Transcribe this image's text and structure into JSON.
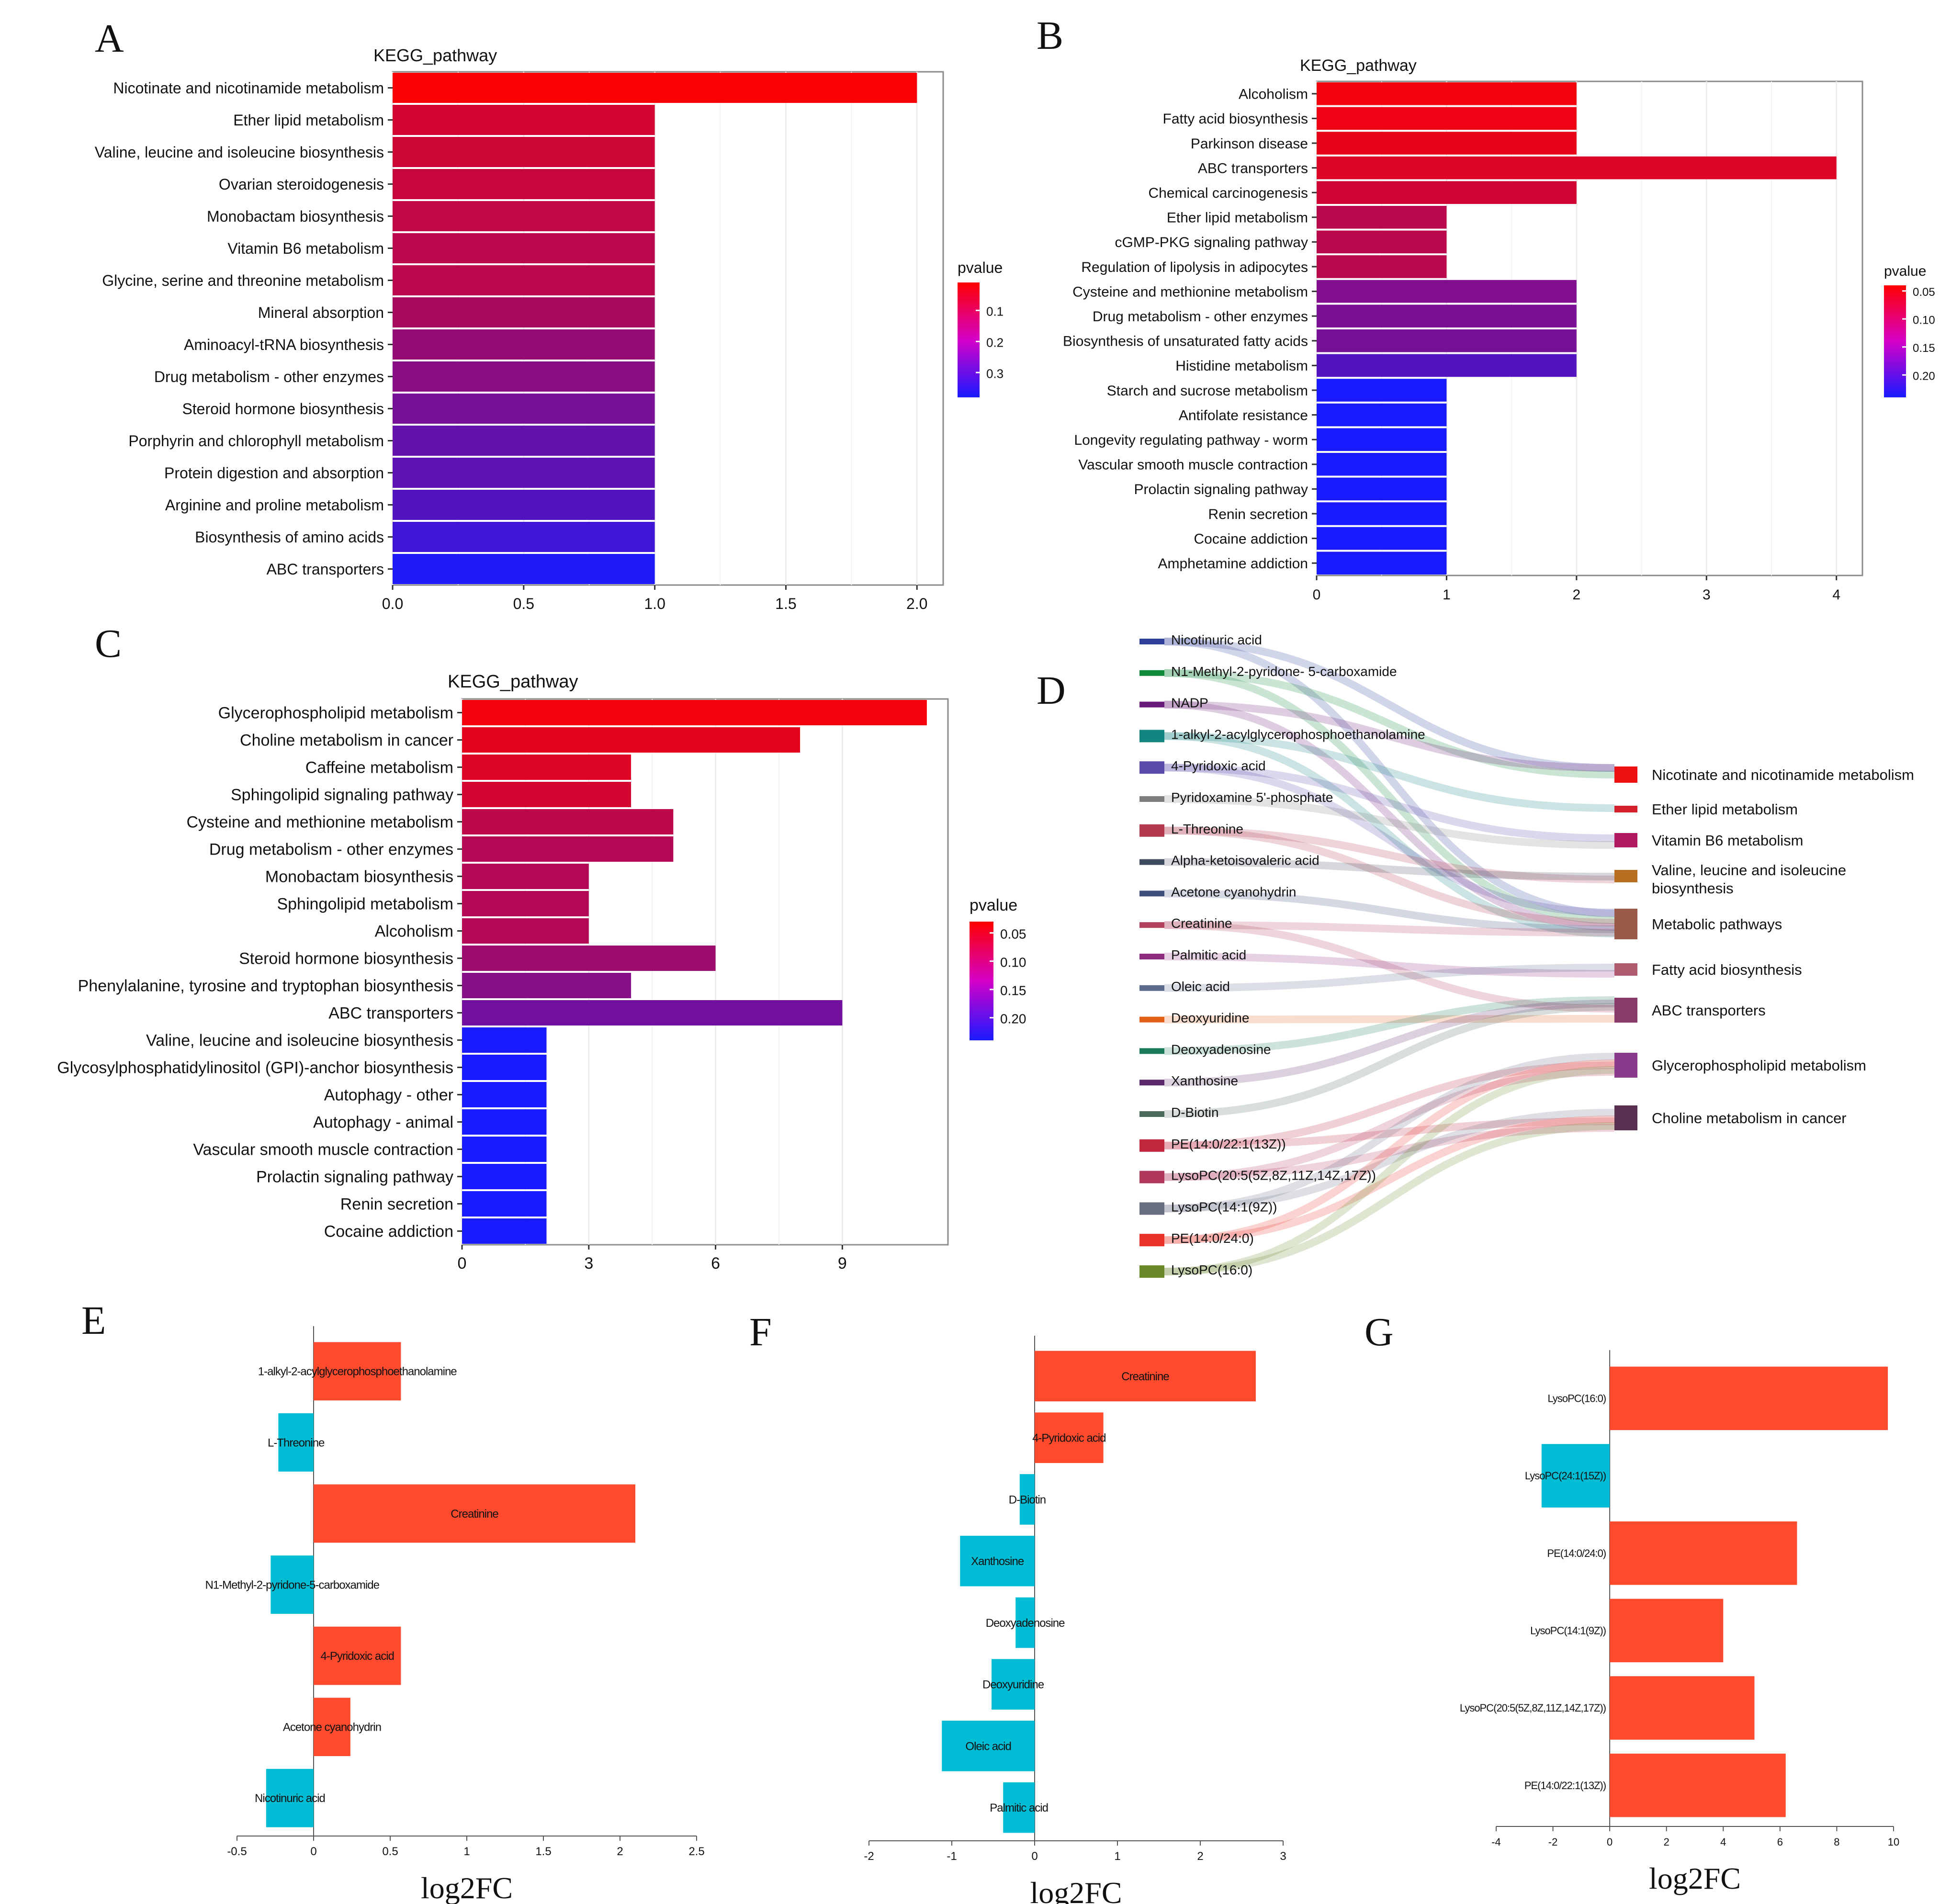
{
  "colors": {
    "red": "#ff0000",
    "blue": "#1a1aff",
    "bar_up": "#ff4a2e",
    "bar_down": "#00bcd4",
    "grid": "#ececec",
    "frame": "#8c8c8c",
    "ink": "#111111"
  },
  "chart_data": [
    {
      "panel": "A",
      "type": "bar",
      "orientation": "horizontal",
      "title": "KEGG_pathway",
      "categories": [
        "Nicotinate and nicotinamide metabolism",
        "Ether lipid metabolism",
        "Valine, leucine and isoleucine biosynthesis",
        "Ovarian steroidogenesis",
        "Monobactam biosynthesis",
        "Vitamin B6 metabolism",
        "Glycine, serine and threonine metabolism",
        "Mineral absorption",
        "Aminoacyl-tRNA biosynthesis",
        "Drug metabolism - other enzymes",
        "Steroid hormone biosynthesis",
        "Porphyrin and chlorophyll metabolism",
        "Protein digestion and absorption",
        "Arginine and proline metabolism",
        "Biosynthesis of amino acids",
        "ABC transporters"
      ],
      "values": [
        2,
        1,
        1,
        1,
        1,
        1,
        1,
        1,
        1,
        1,
        1,
        1,
        1,
        1,
        1,
        1
      ],
      "pvalues": [
        0.02,
        0.08,
        0.09,
        0.1,
        0.11,
        0.12,
        0.12,
        0.15,
        0.18,
        0.2,
        0.23,
        0.26,
        0.27,
        0.29,
        0.32,
        0.37
      ],
      "xlim": [
        0,
        2.1
      ],
      "xticks": [
        "0.0",
        "0.5",
        "1.0",
        "1.5",
        "2.0"
      ],
      "xtick_values": [
        0,
        0.5,
        1,
        1.5,
        2
      ],
      "legend": {
        "title": "pvalue",
        "range": [
          0.01,
          0.38
        ],
        "labels": [
          "0.1",
          "0.2",
          "0.3"
        ],
        "label_values": [
          0.1,
          0.2,
          0.3
        ]
      }
    },
    {
      "panel": "B",
      "type": "bar",
      "orientation": "horizontal",
      "title": "KEGG_pathway",
      "categories": [
        "Alcoholism",
        "Fatty acid biosynthesis",
        "Parkinson disease",
        "ABC transporters",
        "Chemical carcinogenesis",
        "Ether lipid metabolism",
        "cGMP-PKG signaling pathway",
        "Regulation of lipolysis in adipocytes",
        "Cysteine and methionine metabolism",
        "Drug metabolism - other enzymes",
        "Biosynthesis of unsaturated fatty acids",
        "Histidine metabolism",
        "Starch and sucrose metabolism",
        "Antifolate resistance",
        "Longevity regulating pathway - worm",
        "Vascular smooth muscle contraction",
        "Prolactin signaling pathway",
        "Renin secretion",
        "Cocaine addiction",
        "Amphetamine addiction"
      ],
      "values": [
        2,
        2,
        2,
        4,
        2,
        1,
        1,
        1,
        2,
        2,
        2,
        2,
        1,
        1,
        1,
        1,
        1,
        1,
        1,
        1
      ],
      "pvalues": [
        0.05,
        0.055,
        0.06,
        0.07,
        0.08,
        0.1,
        0.1,
        0.1,
        0.15,
        0.155,
        0.16,
        0.19,
        0.24,
        0.24,
        0.24,
        0.24,
        0.24,
        0.24,
        0.24,
        0.24
      ],
      "xlim": [
        0,
        4.2
      ],
      "xticks": [
        "0",
        "1",
        "2",
        "3",
        "4"
      ],
      "xtick_values": [
        0,
        1,
        2,
        3,
        4
      ],
      "legend": {
        "title": "pvalue",
        "range": [
          0.04,
          0.24
        ],
        "labels": [
          "0.05",
          "0.10",
          "0.15",
          "0.20"
        ],
        "label_values": [
          0.05,
          0.1,
          0.15,
          0.2
        ]
      }
    },
    {
      "panel": "C",
      "type": "bar",
      "orientation": "horizontal",
      "title": "KEGG_pathway",
      "categories": [
        "Glycerophospholipid metabolism",
        "Choline metabolism in cancer",
        "Caffeine metabolism",
        "Sphingolipid signaling pathway",
        "Cysteine and methionine metabolism",
        "Drug metabolism - other enzymes",
        "Monobactam biosynthesis",
        "Sphingolipid metabolism",
        "Alcoholism",
        "Steroid hormone biosynthesis",
        "Phenylalanine, tyrosine and tryptophan biosynthesis",
        "ABC transporters",
        "Valine, leucine and isoleucine biosynthesis",
        "Glycosylphosphatidylinositol (GPI)-anchor biosynthesis",
        "Autophagy - other",
        "Autophagy - animal",
        "Vascular smooth muscle contraction",
        "Prolactin signaling pathway",
        "Renin secretion",
        "Cocaine addiction"
      ],
      "values": [
        11,
        8,
        4,
        4,
        5,
        5,
        3,
        3,
        3,
        6,
        4,
        9,
        2,
        2,
        2,
        2,
        2,
        2,
        2,
        2
      ],
      "pvalues": [
        0.04,
        0.055,
        0.06,
        0.07,
        0.09,
        0.1,
        0.1,
        0.1,
        0.1,
        0.12,
        0.14,
        0.16,
        0.24,
        0.24,
        0.24,
        0.24,
        0.24,
        0.24,
        0.24,
        0.24
      ],
      "xlim": [
        0,
        11.5
      ],
      "xticks": [
        "0",
        "3",
        "6",
        "9"
      ],
      "xtick_values": [
        0,
        3,
        6,
        9
      ],
      "legend": {
        "title": "pvalue",
        "range": [
          0.03,
          0.24
        ],
        "labels": [
          "0.05",
          "0.10",
          "0.15",
          "0.20"
        ],
        "label_values": [
          0.05,
          0.1,
          0.15,
          0.2
        ]
      }
    },
    {
      "panel": "D",
      "type": "sankey",
      "sources": [
        {
          "label": "Nicotinuric acid",
          "color": "#2e3f99"
        },
        {
          "label": "N1-Methyl-2-pyridone- 5-carboxamide",
          "color": "#128a3c"
        },
        {
          "label": "NADP",
          "color": "#6a1a78"
        },
        {
          "label": "1-alkyl-2-acylglycerophosphoethanolamine",
          "color": "#138581"
        },
        {
          "label": "4-Pyridoxic acid",
          "color": "#5b4aa8"
        },
        {
          "label": "Pyridoxamine 5'-phosphate",
          "color": "#7e7e7e"
        },
        {
          "label": "L-Threonine",
          "color": "#b23a4c"
        },
        {
          "label": "Alpha-ketoisovaleric acid",
          "color": "#3e4a5e"
        },
        {
          "label": "Acetone cyanohydrin",
          "color": "#3d4f7a"
        },
        {
          "label": "Creatinine",
          "color": "#b0405c"
        },
        {
          "label": "Palmitic acid",
          "color": "#8e2c82"
        },
        {
          "label": "Oleic acid",
          "color": "#5a6a8a"
        },
        {
          "label": "Deoxyuridine",
          "color": "#e0601a"
        },
        {
          "label": "Deoxyadenosine",
          "color": "#1a7a5a"
        },
        {
          "label": "Xanthosine",
          "color": "#5a2a6a"
        },
        {
          "label": "D-Biotin",
          "color": "#4a6a5a"
        },
        {
          "label": "PE(14:0/22:1(13Z))",
          "color": "#c0283e"
        },
        {
          "label": "LysoPC(20:5(5Z,8Z,11Z,14Z,17Z))",
          "color": "#b0385a"
        },
        {
          "label": "LysoPC(14:1(9Z))",
          "color": "#6a6e82"
        },
        {
          "label": "PE(14:0/24:0)",
          "color": "#e8322a"
        },
        {
          "label": "LysoPC(16:0)",
          "color": "#6a8a2a"
        }
      ],
      "targets": [
        {
          "label": "Nicotinate and nicotinamide metabolism",
          "color": "#ee1111"
        },
        {
          "label": "Ether lipid metabolism",
          "color": "#d4202a"
        },
        {
          "label": "Vitamin B6 metabolism",
          "color": "#b01860"
        },
        {
          "label": "Valine, leucine and isoleucine biosynthesis",
          "color": "#b87020"
        },
        {
          "label": "Metabolic pathways",
          "color": "#9a5a4a"
        },
        {
          "label": "Fatty acid biosynthesis",
          "color": "#b05a70"
        },
        {
          "label": "ABC transporters",
          "color": "#8a3a6a"
        },
        {
          "label": "Glycerophospholipid metabolism",
          "color": "#8a3a8a"
        },
        {
          "label": "Choline metabolism in cancer",
          "color": "#5a3050"
        }
      ],
      "links": [
        [
          0,
          0
        ],
        [
          0,
          4
        ],
        [
          1,
          0
        ],
        [
          1,
          4
        ],
        [
          2,
          0
        ],
        [
          2,
          4
        ],
        [
          3,
          1
        ],
        [
          3,
          4
        ],
        [
          4,
          2
        ],
        [
          4,
          4
        ],
        [
          5,
          2
        ],
        [
          6,
          3
        ],
        [
          6,
          4
        ],
        [
          7,
          3
        ],
        [
          8,
          4
        ],
        [
          9,
          4
        ],
        [
          9,
          6
        ],
        [
          10,
          5
        ],
        [
          11,
          5
        ],
        [
          12,
          6
        ],
        [
          13,
          6
        ],
        [
          14,
          6
        ],
        [
          15,
          6
        ],
        [
          16,
          7
        ],
        [
          16,
          8
        ],
        [
          17,
          7
        ],
        [
          17,
          8
        ],
        [
          18,
          7
        ],
        [
          18,
          8
        ],
        [
          19,
          7
        ],
        [
          19,
          8
        ],
        [
          20,
          7
        ],
        [
          20,
          8
        ]
      ]
    },
    {
      "panel": "E",
      "type": "bar",
      "orientation": "horizontal",
      "xlabel": "log2FC",
      "categories": [
        "1-alkyl-2-acylglycerophosphoethanolamine",
        "L-Threonine",
        "Creatinine",
        "N1-Methyl-2-pyridone-5-carboxamide",
        "4-Pyridoxic acid",
        "Acetone cyanohydrin",
        "Nicotinuric acid"
      ],
      "values": [
        0.57,
        -0.23,
        2.1,
        -0.28,
        0.57,
        0.24,
        -0.31
      ],
      "xlim": [
        -0.5,
        2.5
      ],
      "xticks": [
        "-0.5",
        "0",
        "0.5",
        "1",
        "1.5",
        "2",
        "2.5"
      ],
      "xtick_values": [
        -0.5,
        0,
        0.5,
        1,
        1.5,
        2,
        2.5
      ]
    },
    {
      "panel": "F",
      "type": "bar",
      "orientation": "horizontal",
      "xlabel": "log2FC",
      "categories": [
        "Creatinine",
        "4-Pyridoxic acid",
        "D-Biotin",
        "Xanthosine",
        "Deoxyadenosine",
        "Deoxyuridine",
        "Oleic acid",
        "Palmitic acid"
      ],
      "values": [
        2.67,
        0.83,
        -0.18,
        -0.9,
        -0.23,
        -0.52,
        -1.12,
        -0.38
      ],
      "xlim": [
        -2,
        3
      ],
      "xticks": [
        "-2",
        "-1",
        "0",
        "1",
        "2",
        "3"
      ],
      "xtick_values": [
        -2,
        -1,
        0,
        1,
        2,
        3
      ]
    },
    {
      "panel": "G",
      "type": "bar",
      "orientation": "horizontal",
      "xlabel": "log2FC",
      "categories": [
        "LysoPC(16:0)",
        "LysoPC(24:1(15Z))",
        "PE(14:0/24:0)",
        "LysoPC(14:1(9Z))",
        "LysoPC(20:5(5Z,8Z,11Z,14Z,17Z))",
        "PE(14:0/22:1(13Z))"
      ],
      "values": [
        9.8,
        -2.4,
        6.6,
        4.0,
        5.1,
        6.2
      ],
      "xlim": [
        -4,
        10
      ],
      "xticks": [
        "-4",
        "-2",
        "0",
        "2",
        "4",
        "6",
        "8",
        "10"
      ],
      "xtick_values": [
        -4,
        -2,
        0,
        2,
        4,
        6,
        8,
        10
      ]
    }
  ]
}
